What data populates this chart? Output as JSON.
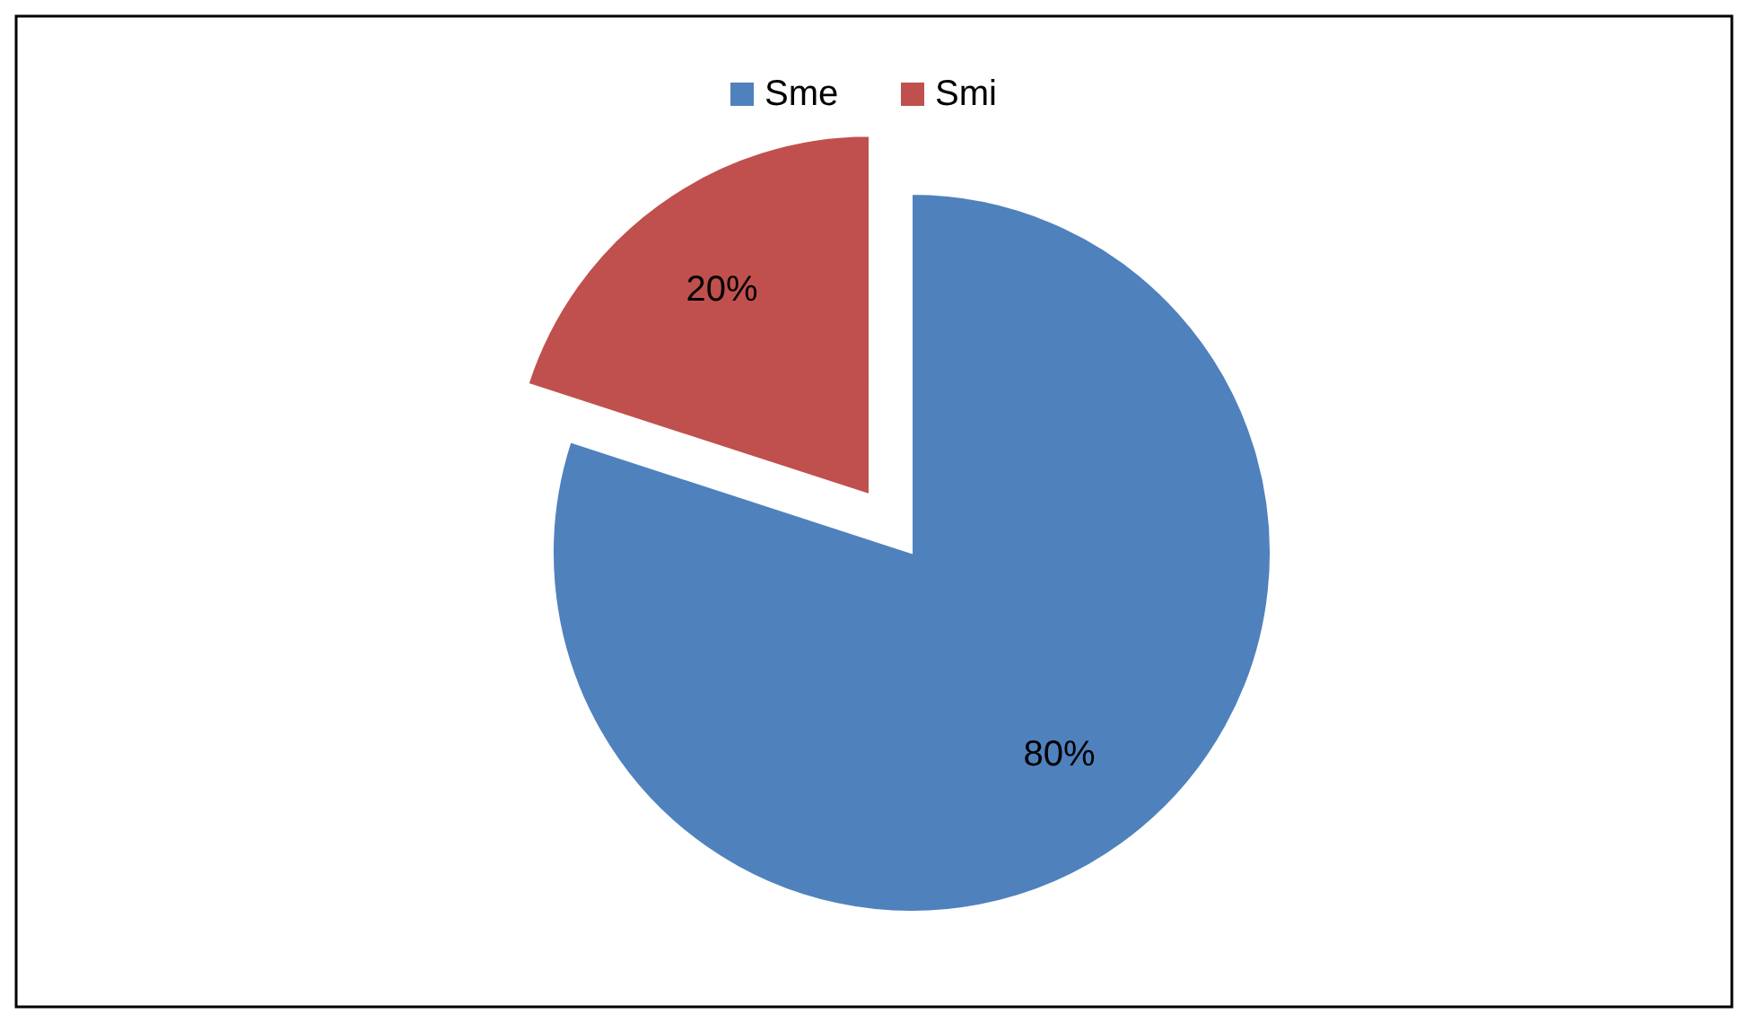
{
  "chart_data": {
    "type": "pie",
    "categories": [
      "Sme",
      "Smi"
    ],
    "values": [
      80,
      20
    ],
    "colors": [
      "#4f81bd",
      "#c0504d"
    ],
    "value_labels": [
      "80%",
      "20%"
    ],
    "legend": "top"
  }
}
